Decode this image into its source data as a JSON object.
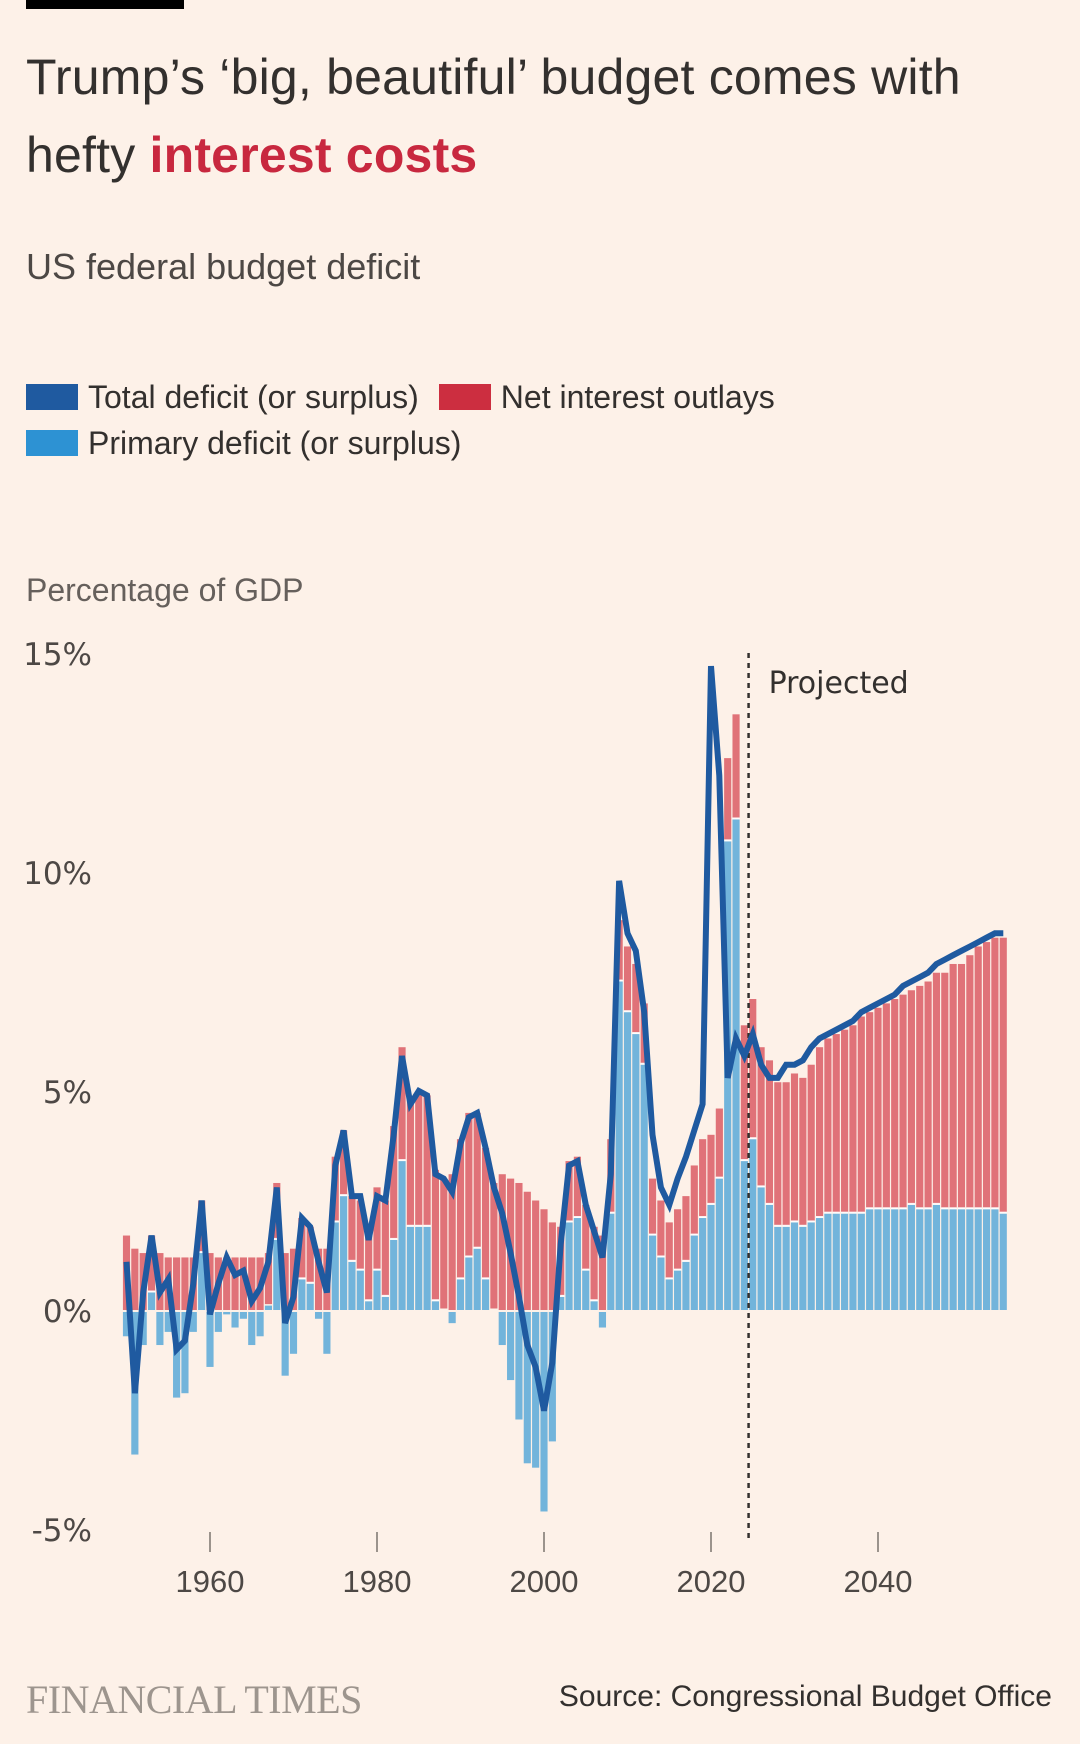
{
  "header": {
    "title_part1": "Trump’s ‘big, beautiful’ budget comes with hefty ",
    "title_highlight": "interest costs",
    "subtitle": "US federal budget deficit"
  },
  "legend": [
    {
      "label": "Total deficit (or surplus)",
      "color": "#1f5aa0"
    },
    {
      "label": "Net interest outlays",
      "color": "#cc2e40"
    },
    {
      "label": "Primary deficit (or surplus)",
      "color": "#2d92d3"
    }
  ],
  "colors": {
    "background": "#fdf1e8",
    "total_line": "#1f5aa0",
    "interest_bar": "#e07278",
    "primary_bar": "#72b4db",
    "highlight_text": "#c8283f"
  },
  "footer": {
    "brand": "FINANCIAL TIMES",
    "source": "Source: Congressional Budget Office"
  },
  "chart_data": {
    "type": "bar",
    "title": "US federal budget deficit",
    "ylabel": "Percentage of GDP",
    "xlabel": "",
    "ylim": [
      -5,
      15
    ],
    "xlim": [
      1950,
      2055
    ],
    "y_ticks": [
      {
        "value": 15,
        "label": "15%"
      },
      {
        "value": 10,
        "label": "10%"
      },
      {
        "value": 5,
        "label": "5%"
      },
      {
        "value": 0,
        "label": "0%"
      },
      {
        "value": -5,
        "label": "-5%"
      }
    ],
    "x_ticks": [
      {
        "value": 1960,
        "label": "1960"
      },
      {
        "value": 1980,
        "label": "1980"
      },
      {
        "value": 2000,
        "label": "2000"
      },
      {
        "value": 2020,
        "label": "2020"
      },
      {
        "value": 2040,
        "label": "2040"
      }
    ],
    "annotation": {
      "label": "Projected",
      "x": 2024.5
    },
    "grid": false,
    "legend_position": "top-left",
    "x": [
      1950,
      1951,
      1952,
      1953,
      1954,
      1955,
      1956,
      1957,
      1958,
      1959,
      1960,
      1961,
      1962,
      1963,
      1964,
      1965,
      1966,
      1967,
      1968,
      1969,
      1970,
      1971,
      1972,
      1973,
      1974,
      1975,
      1976,
      1977,
      1978,
      1979,
      1980,
      1981,
      1982,
      1983,
      1984,
      1985,
      1986,
      1987,
      1988,
      1989,
      1990,
      1991,
      1992,
      1993,
      1994,
      1995,
      1996,
      1997,
      1998,
      1999,
      2000,
      2001,
      2002,
      2003,
      2004,
      2005,
      2006,
      2007,
      2008,
      2009,
      2010,
      2011,
      2012,
      2013,
      2014,
      2015,
      2016,
      2017,
      2018,
      2019,
      2020,
      2021,
      2022,
      2023,
      2024,
      2025,
      2026,
      2027,
      2028,
      2029,
      2030,
      2031,
      2032,
      2033,
      2034,
      2035,
      2036,
      2037,
      2038,
      2039,
      2040,
      2041,
      2042,
      2043,
      2044,
      2045,
      2046,
      2047,
      2048,
      2049,
      2050,
      2051,
      2052,
      2053,
      2054,
      2055
    ],
    "series": [
      {
        "name": "Primary deficit (or surplus)",
        "values": [
          -0.6,
          -3.3,
          -0.8,
          0.4,
          -0.8,
          -0.5,
          -2.0,
          -1.9,
          -0.5,
          1.3,
          -1.3,
          -0.5,
          -0.1,
          -0.4,
          -0.2,
          -0.8,
          -0.6,
          0.1,
          1.6,
          -1.5,
          -1.0,
          0.7,
          0.6,
          -0.2,
          -1.0,
          2.0,
          2.6,
          1.1,
          0.9,
          0.2,
          0.9,
          0.3,
          1.6,
          3.4,
          1.9,
          1.9,
          1.9,
          0.2,
          -0.0,
          -0.3,
          0.7,
          1.2,
          1.4,
          0.7,
          -0.0,
          -0.8,
          -1.6,
          -2.5,
          -3.5,
          -3.6,
          -4.6,
          -3.0,
          0.3,
          2.0,
          2.1,
          0.9,
          0.2,
          -0.4,
          2.2,
          7.5,
          6.8,
          6.3,
          5.6,
          1.7,
          1.2,
          0.7,
          0.9,
          1.1,
          1.7,
          2.1,
          2.4,
          3.0,
          10.7,
          11.2,
          3.4,
          3.9,
          2.8,
          2.4,
          1.9,
          1.9,
          2.0,
          1.9,
          2.0,
          2.1,
          2.2,
          2.2,
          2.2,
          2.2,
          2.2,
          2.3,
          2.3,
          2.3,
          2.3,
          2.3,
          2.4,
          2.3,
          2.3,
          2.4,
          2.3,
          2.3,
          2.3,
          2.3,
          2.3,
          2.3,
          2.3,
          2.2
        ]
      },
      {
        "name": "Net interest outlays",
        "values": [
          1.7,
          1.4,
          1.3,
          1.3,
          1.3,
          1.2,
          1.2,
          1.2,
          1.2,
          1.2,
          1.3,
          1.2,
          1.2,
          1.2,
          1.2,
          1.2,
          1.2,
          1.2,
          1.3,
          1.3,
          1.4,
          1.4,
          1.3,
          1.4,
          1.4,
          1.5,
          1.5,
          1.5,
          1.6,
          1.7,
          1.9,
          2.2,
          2.6,
          2.6,
          2.9,
          3.1,
          3.0,
          3.0,
          3.0,
          3.1,
          3.2,
          3.3,
          3.1,
          3.0,
          2.9,
          3.1,
          3.0,
          2.9,
          2.7,
          2.5,
          2.3,
          2.0,
          1.6,
          1.4,
          1.4,
          1.5,
          1.7,
          1.7,
          1.7,
          1.4,
          1.5,
          1.6,
          1.4,
          1.3,
          1.3,
          1.3,
          1.4,
          1.5,
          1.6,
          1.8,
          1.6,
          1.6,
          1.9,
          2.4,
          3.1,
          3.2,
          3.2,
          3.3,
          3.3,
          3.3,
          3.4,
          3.4,
          3.6,
          3.9,
          4.0,
          4.1,
          4.2,
          4.3,
          4.5,
          4.5,
          4.6,
          4.7,
          4.8,
          4.9,
          4.9,
          5.1,
          5.2,
          5.3,
          5.4,
          5.6,
          5.6,
          5.8,
          6.0,
          6.1,
          6.2,
          6.3
        ]
      },
      {
        "name": "Total deficit (or surplus)",
        "values": [
          1.1,
          -1.9,
          0.4,
          1.7,
          0.4,
          0.7,
          -0.9,
          -0.7,
          0.6,
          2.5,
          -0.1,
          0.6,
          1.2,
          0.8,
          0.9,
          0.2,
          0.5,
          1.1,
          2.8,
          -0.3,
          0.3,
          2.1,
          1.9,
          1.1,
          0.4,
          3.3,
          4.1,
          2.6,
          2.6,
          1.6,
          2.6,
          2.5,
          4.0,
          5.8,
          4.7,
          5.0,
          4.9,
          3.1,
          3.0,
          2.7,
          3.8,
          4.4,
          4.5,
          3.7,
          2.8,
          2.2,
          1.3,
          0.3,
          -0.8,
          -1.3,
          -2.3,
          -1.2,
          1.5,
          3.3,
          3.4,
          2.4,
          1.8,
          1.2,
          3.1,
          9.8,
          8.6,
          8.2,
          6.8,
          4.0,
          2.8,
          2.4,
          3.0,
          3.5,
          4.1,
          4.7,
          14.7,
          12.2,
          5.3,
          6.2,
          5.8,
          6.3,
          5.6,
          5.3,
          5.3,
          5.6,
          5.6,
          5.7,
          6.0,
          6.2,
          6.3,
          6.4,
          6.5,
          6.6,
          6.8,
          6.9,
          7.0,
          7.1,
          7.2,
          7.4,
          7.5,
          7.6,
          7.7,
          7.9,
          8.0,
          8.1,
          8.2,
          8.3,
          8.4,
          8.5,
          8.6,
          8.6
        ]
      }
    ]
  }
}
